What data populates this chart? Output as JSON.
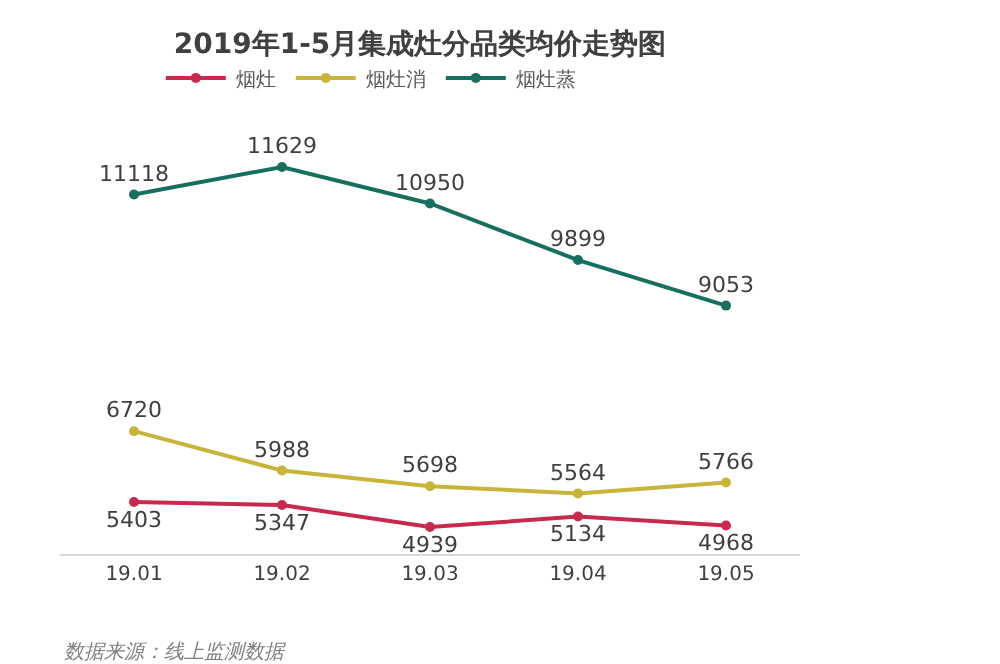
{
  "chart_data": {
    "type": "line",
    "title": "2019年1-5月集成灶分品类均价走势图",
    "categories": [
      "19.01",
      "19.02",
      "19.03",
      "19.04",
      "19.05"
    ],
    "series": [
      {
        "name": "烟灶",
        "color": "#c8294f",
        "values": [
          5403,
          5347,
          4939,
          5134,
          4968
        ]
      },
      {
        "name": "烟灶消",
        "color": "#c9b43a",
        "values": [
          6720,
          5988,
          5698,
          5564,
          5766
        ]
      },
      {
        "name": "烟灶蒸",
        "color": "#17705f",
        "values": [
          11118,
          11629,
          10950,
          9899,
          9053
        ]
      }
    ],
    "data_labels": true,
    "marker": "circle",
    "line_style": "solid",
    "legend": "top",
    "annotations": [
      "数据来源：线上监测数据"
    ]
  }
}
